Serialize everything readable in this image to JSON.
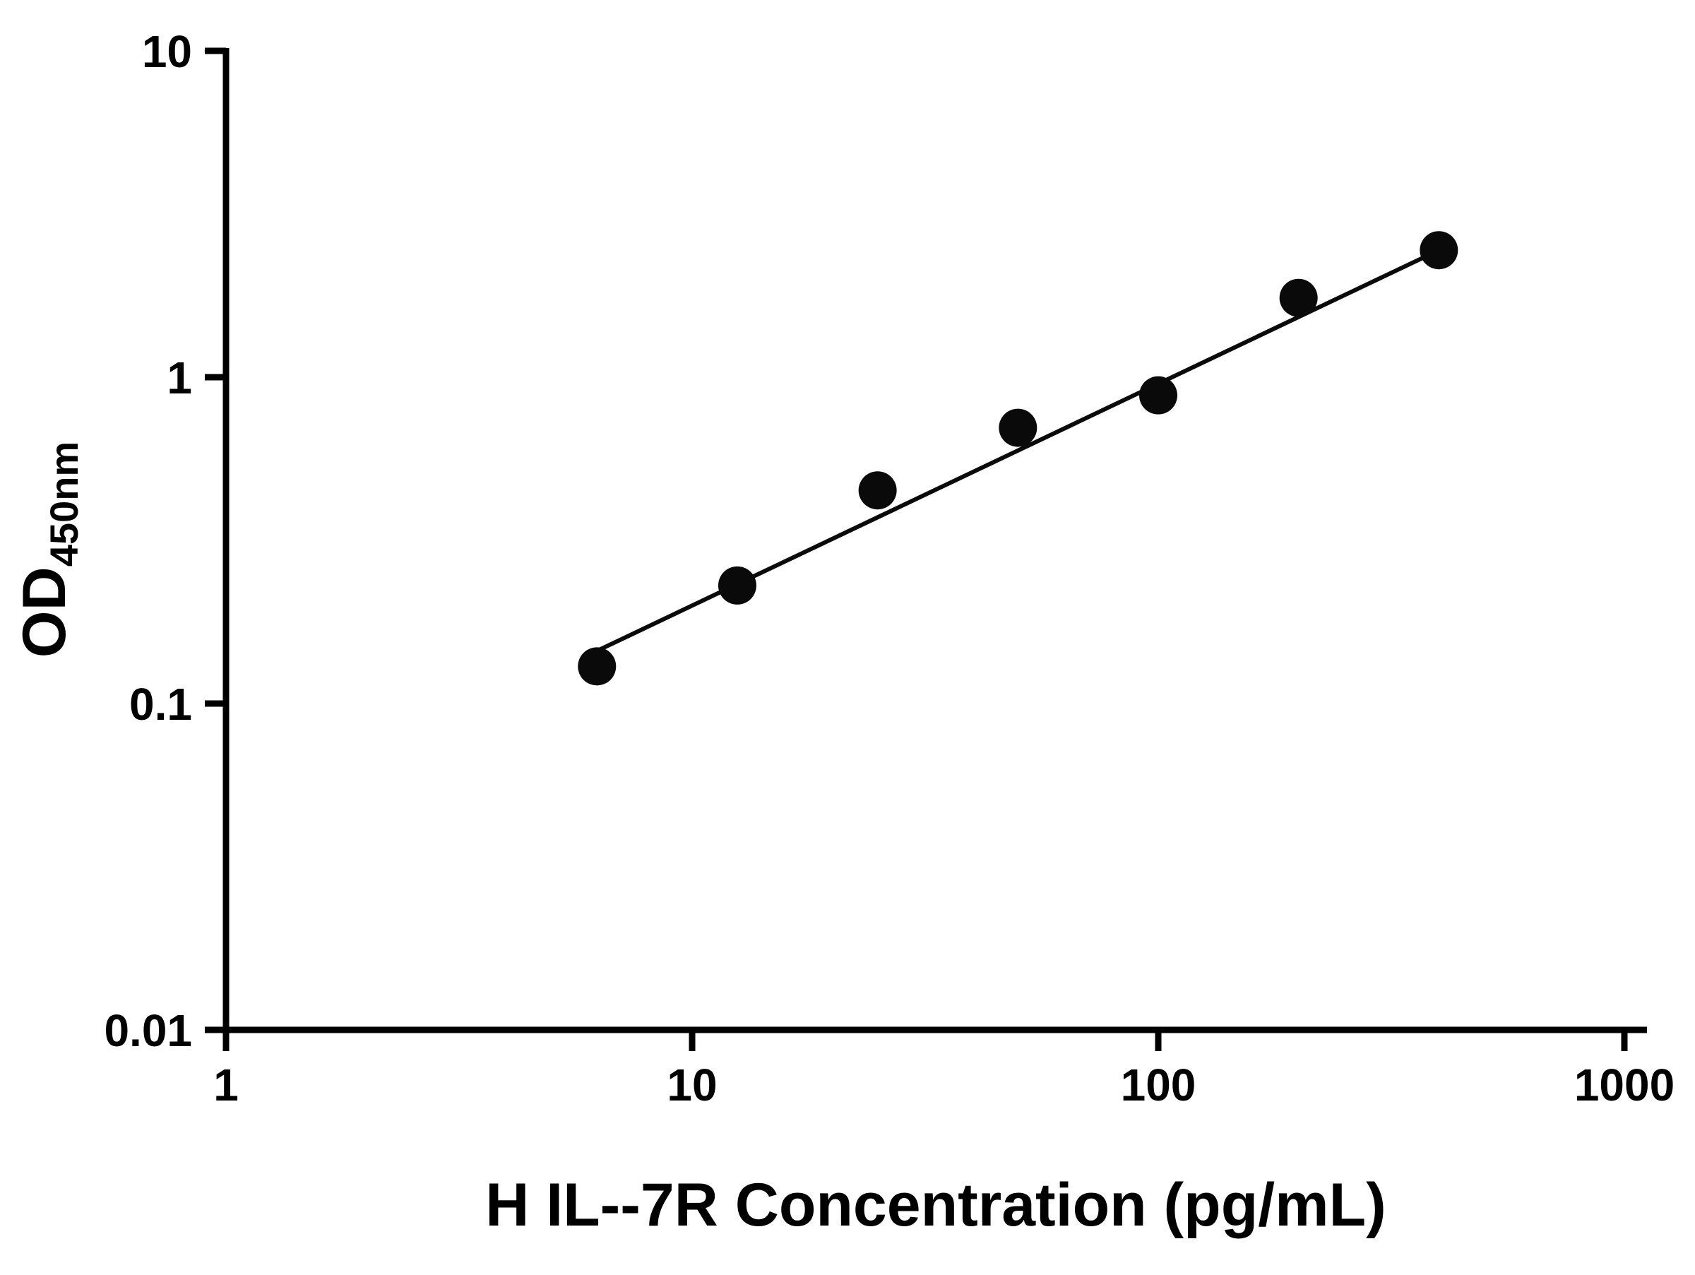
{
  "chart_data": {
    "type": "scatter",
    "title": "",
    "xlabel": "H IL--7R Concentration (pg/mL)",
    "ylabel_main": "OD",
    "ylabel_sub": "450nm",
    "x_scale": "log",
    "y_scale": "log",
    "xlim": [
      1,
      1000
    ],
    "ylim": [
      0.01,
      10
    ],
    "x_ticks": [
      1,
      10,
      100,
      1000
    ],
    "x_tick_labels": [
      "1",
      "10",
      "100",
      "1000"
    ],
    "y_ticks": [
      0.01,
      0.1,
      1,
      10
    ],
    "y_tick_labels": [
      "0.01",
      "0.1",
      "1",
      "10"
    ],
    "grid": false,
    "legend": false,
    "marker_shape": "circle",
    "marker_color": "#0a0a0a",
    "line_color": "#0a0a0a",
    "points": {
      "x": [
        6.25,
        12.5,
        25,
        50,
        100,
        200,
        400
      ],
      "y": [
        0.13,
        0.23,
        0.45,
        0.7,
        0.88,
        1.75,
        2.45
      ]
    },
    "fit_line": {
      "x": [
        6.25,
        400
      ],
      "y": [
        0.145,
        2.45
      ]
    }
  }
}
